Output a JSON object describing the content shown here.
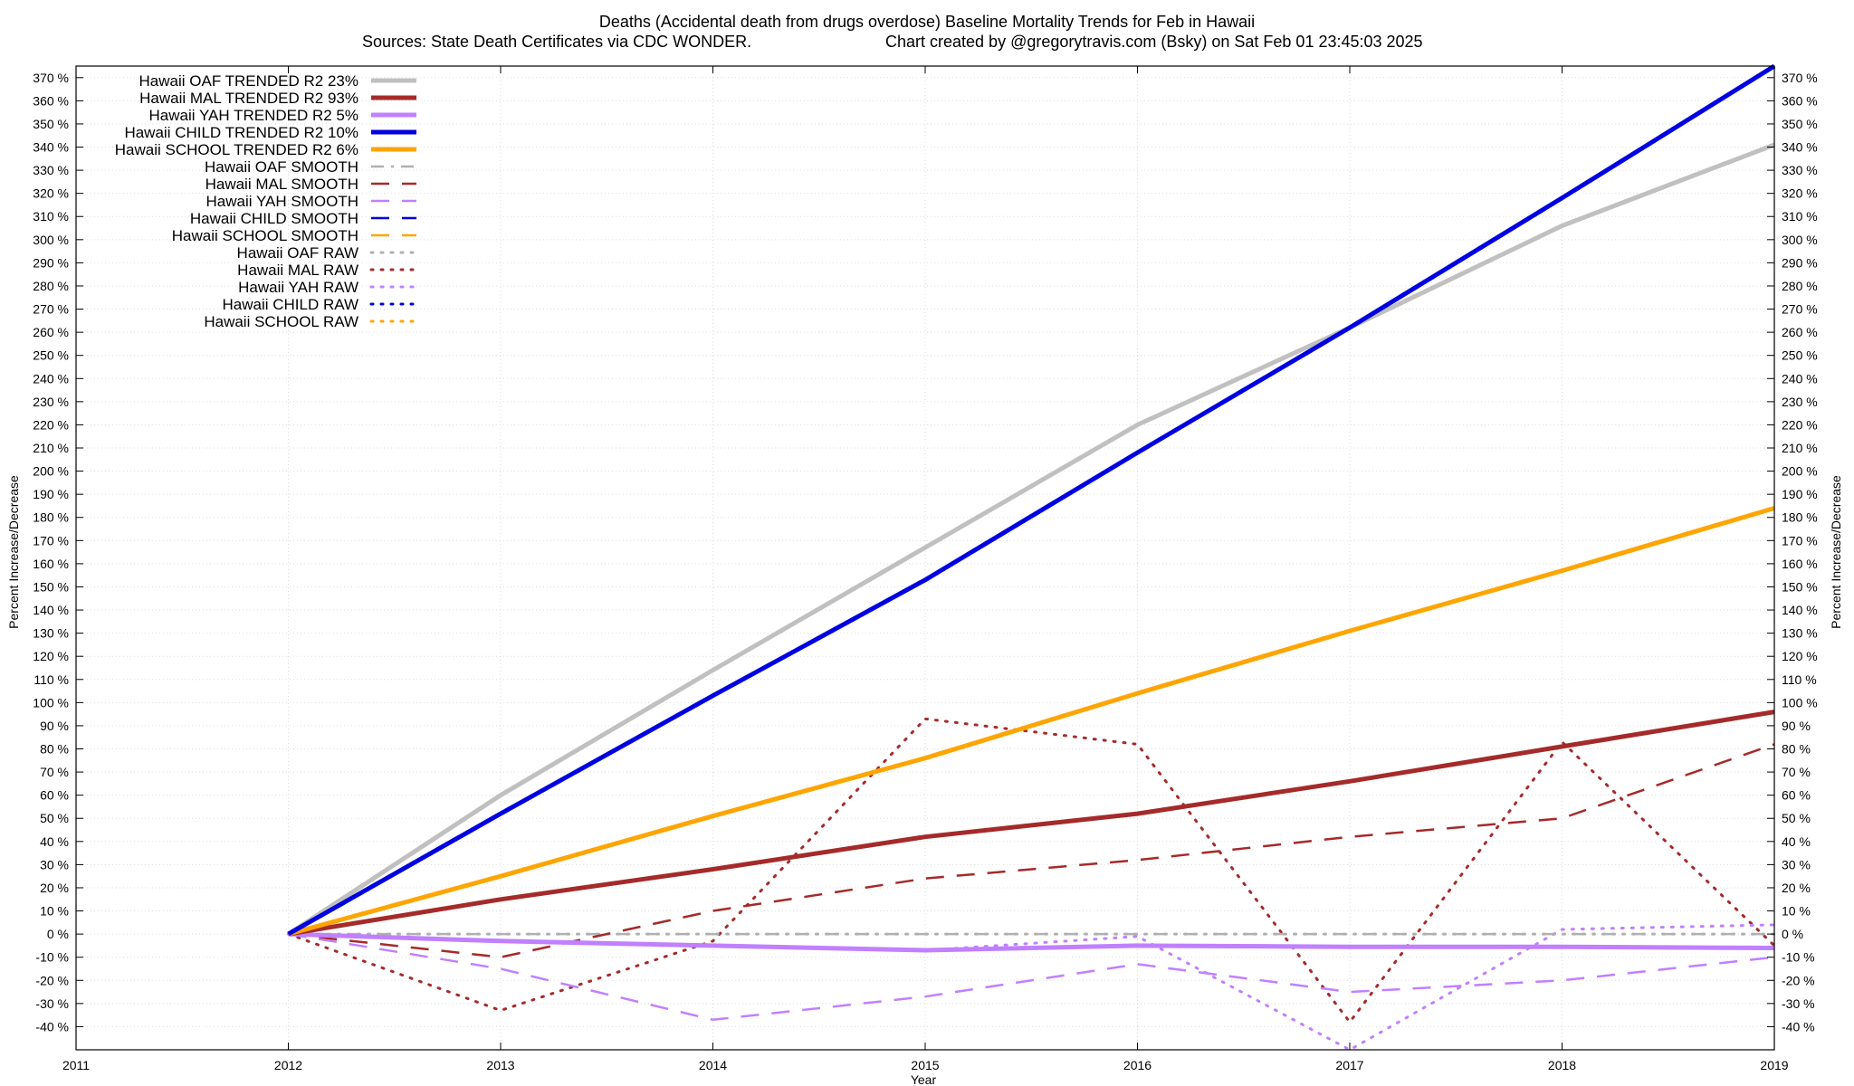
{
  "chart_data": {
    "type": "line",
    "title": "Deaths (Accidental death from drugs overdose)  Baseline Mortality Trends for Feb in Hawaii",
    "subtitle_left": "Sources: State Death Certificates via CDC WONDER.",
    "subtitle_right": "Chart created by @gregorytravis.com (Bsky) on Sat Feb 01 23:45:03 2025",
    "xlabel": "Year",
    "ylabel_left": "Percent Increase/Decrease",
    "ylabel_right": "Percent Increase/Decrease",
    "xlim": [
      2011,
      2019
    ],
    "ylim": [
      -50,
      375
    ],
    "x_ticks": [
      2011,
      2012,
      2013,
      2014,
      2015,
      2016,
      2017,
      2018,
      2019
    ],
    "y_ticks": [
      -40,
      -30,
      -20,
      -10,
      0,
      10,
      20,
      30,
      40,
      50,
      60,
      70,
      80,
      90,
      100,
      110,
      120,
      130,
      140,
      150,
      160,
      170,
      180,
      190,
      200,
      210,
      220,
      230,
      240,
      250,
      260,
      270,
      280,
      290,
      300,
      310,
      320,
      330,
      340,
      350,
      360,
      370
    ],
    "y_tick_suffix": " %",
    "grid": true,
    "legend_position": "top-left",
    "series": [
      {
        "name": "Hawaii OAF TRENDED R2  23%",
        "style": "solid",
        "width": 5,
        "color": "#c0c0c0",
        "x": [
          2012,
          2013,
          2014,
          2015,
          2016,
          2017,
          2018,
          2019
        ],
        "y": [
          0,
          60,
          114,
          167,
          220,
          262,
          306,
          341
        ]
      },
      {
        "name": "Hawaii MAL TRENDED R2  93%",
        "style": "solid",
        "width": 5,
        "color": "#a52a2a",
        "x": [
          2012,
          2013,
          2014,
          2015,
          2016,
          2017,
          2018,
          2019
        ],
        "y": [
          0,
          15,
          28,
          42,
          52,
          66,
          81,
          96
        ]
      },
      {
        "name": "Hawaii YAH TRENDED R2   5%",
        "style": "solid",
        "width": 5,
        "color": "#c080ff",
        "x": [
          2012,
          2013,
          2014,
          2015,
          2016,
          2017,
          2018,
          2019
        ],
        "y": [
          0,
          -3,
          -5,
          -7,
          -5,
          -5.5,
          -5.5,
          -6
        ]
      },
      {
        "name": "Hawaii CHILD TRENDED R2  10%",
        "style": "solid",
        "width": 5,
        "color": "#0000e0",
        "x": [
          2012,
          2013,
          2014,
          2015,
          2016,
          2017,
          2018,
          2019
        ],
        "y": [
          0,
          52,
          103,
          153,
          208,
          262,
          318,
          375
        ]
      },
      {
        "name": "Hawaii SCHOOL TRENDED R2   6%",
        "style": "solid",
        "width": 5,
        "color": "#ffa500",
        "x": [
          2012,
          2013,
          2014,
          2015,
          2016,
          2017,
          2018,
          2019
        ],
        "y": [
          0,
          25,
          51,
          76,
          104,
          131,
          157,
          184
        ]
      },
      {
        "name": "Hawaii OAF SMOOTH",
        "style": "dashdot",
        "width": 2.5,
        "color": "#b0b0b0",
        "x": [
          2012,
          2013,
          2014,
          2015,
          2016,
          2017,
          2018,
          2019
        ],
        "y": [
          0,
          0,
          0,
          0,
          0,
          0,
          0,
          0
        ]
      },
      {
        "name": "Hawaii MAL SMOOTH",
        "style": "dashed",
        "width": 2.5,
        "color": "#a52a2a",
        "x": [
          2012,
          2013,
          2014,
          2015,
          2016,
          2017,
          2018,
          2019
        ],
        "y": [
          0,
          -10,
          10,
          24,
          32,
          42,
          50,
          82
        ]
      },
      {
        "name": "Hawaii YAH SMOOTH",
        "style": "dashed",
        "width": 2.5,
        "color": "#c080ff",
        "x": [
          2012,
          2013,
          2014,
          2015,
          2016,
          2017,
          2018,
          2019
        ],
        "y": [
          0,
          -15,
          -37,
          -27,
          -13,
          -25,
          -20,
          -10
        ]
      },
      {
        "name": "Hawaii CHILD SMOOTH",
        "style": "dashed",
        "width": 2.5,
        "color": "#0000e0",
        "x": [],
        "y": []
      },
      {
        "name": "Hawaii SCHOOL SMOOTH",
        "style": "dashed",
        "width": 2.5,
        "color": "#ffa500",
        "x": [],
        "y": []
      },
      {
        "name": "Hawaii OAF RAW",
        "style": "dotted",
        "width": 3,
        "color": "#b0b0b0",
        "x": [
          2012,
          2013,
          2014,
          2015,
          2016,
          2017,
          2018,
          2019
        ],
        "y": [
          0,
          0,
          0,
          0,
          0,
          0,
          0,
          0
        ]
      },
      {
        "name": "Hawaii MAL RAW",
        "style": "dotted",
        "width": 3,
        "color": "#a52a2a",
        "x": [
          2012,
          2013,
          2014,
          2015,
          2016,
          2017,
          2018,
          2019
        ],
        "y": [
          0,
          -33,
          -3,
          93,
          82,
          -38,
          83,
          -5
        ]
      },
      {
        "name": "Hawaii YAH RAW",
        "style": "dotted",
        "width": 3,
        "color": "#c080ff",
        "x": [
          2012,
          2013,
          2014,
          2015,
          2016,
          2017,
          2018,
          2019
        ],
        "y": [
          0,
          -3,
          -5,
          -7,
          -1,
          -50,
          2,
          4
        ]
      },
      {
        "name": "Hawaii CHILD RAW",
        "style": "dotted",
        "width": 3,
        "color": "#0000e0",
        "x": [],
        "y": []
      },
      {
        "name": "Hawaii SCHOOL RAW",
        "style": "dotted",
        "width": 3,
        "color": "#ffa500",
        "x": [],
        "y": []
      }
    ]
  }
}
